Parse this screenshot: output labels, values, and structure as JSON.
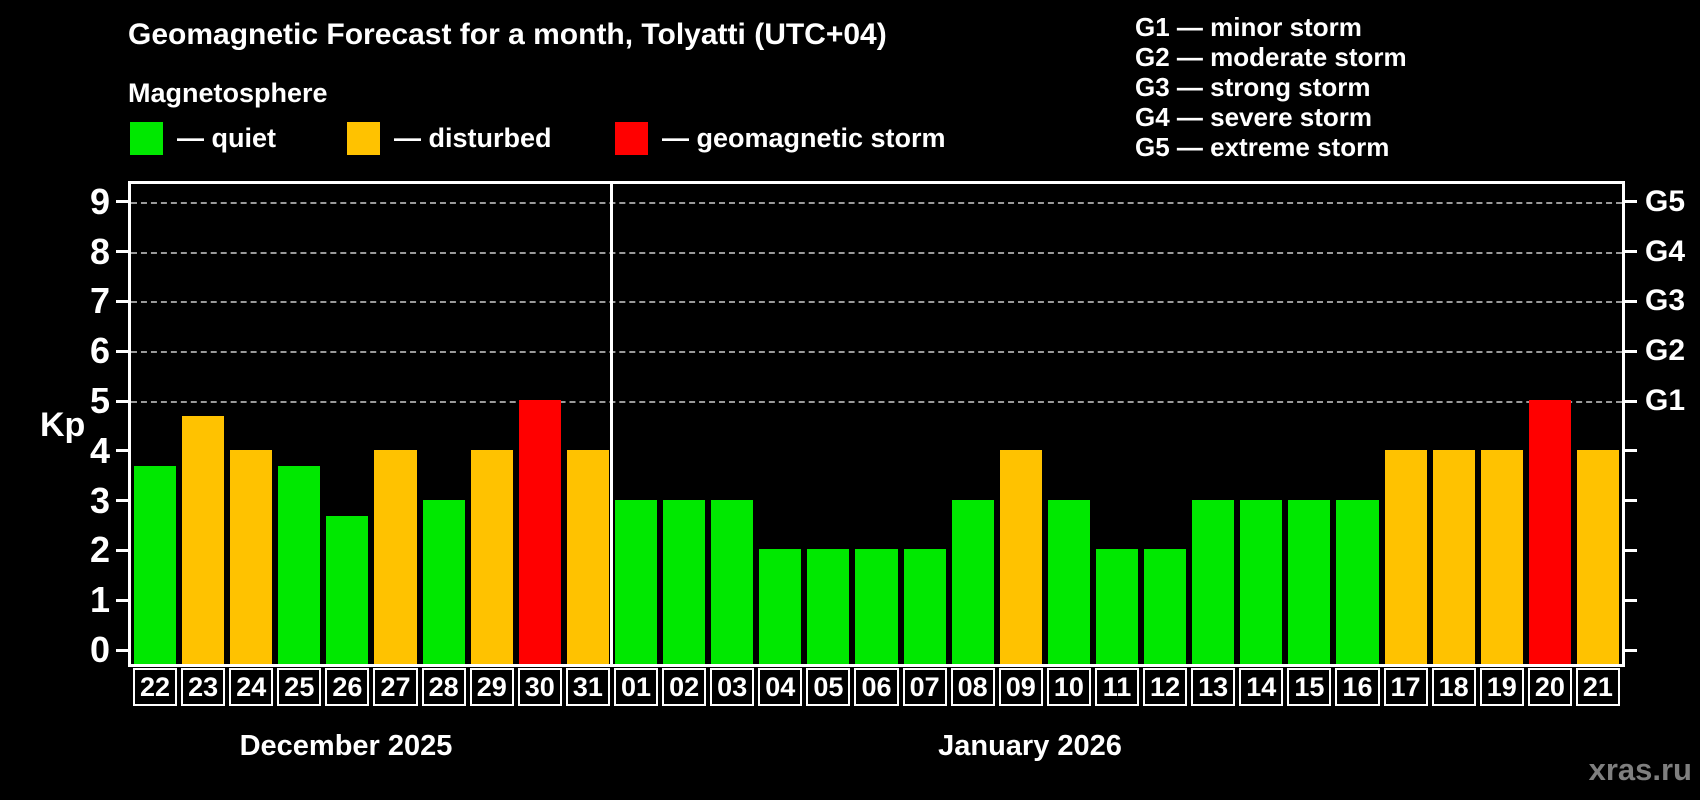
{
  "title": "Geomagnetic Forecast for a month, Tolyatti (UTC+04)",
  "subtitle": "Magnetosphere",
  "legend": {
    "quiet_label": "— quiet",
    "disturbed_label": "— disturbed",
    "storm_label": "— geomagnetic storm"
  },
  "g_legend": [
    "G1 — minor storm",
    "G2 — moderate storm",
    "G3 — strong storm",
    "G4 — severe storm",
    "G5 — extreme storm"
  ],
  "axis": {
    "kp_label": "Kp",
    "y_ticks": [
      0,
      1,
      2,
      3,
      4,
      5,
      6,
      7,
      8,
      9
    ],
    "right_labels": [
      {
        "kp": 9,
        "label": "G5"
      },
      {
        "kp": 8,
        "label": "G4"
      },
      {
        "kp": 7,
        "label": "G3"
      },
      {
        "kp": 6,
        "label": "G2"
      },
      {
        "kp": 5,
        "label": "G1"
      }
    ]
  },
  "colors": {
    "quiet": "#00e800",
    "disturbed": "#ffc200",
    "storm": "#ff0000"
  },
  "watermark": "xras.ru",
  "chart_data": {
    "type": "bar",
    "title": "Geomagnetic Forecast for a month, Tolyatti (UTC+04)",
    "xlabel": "",
    "ylabel": "Kp",
    "ylim": [
      0,
      9.4
    ],
    "grid_kp": [
      5,
      6,
      7,
      8,
      9
    ],
    "legend_position": "top-left and top-right",
    "months": [
      "December 2025",
      "January 2026"
    ],
    "categories": [
      "Dec 22",
      "Dec 23",
      "Dec 24",
      "Dec 25",
      "Dec 26",
      "Dec 27",
      "Dec 28",
      "Dec 29",
      "Dec 30",
      "Dec 31",
      "Jan 01",
      "Jan 02",
      "Jan 03",
      "Jan 04",
      "Jan 05",
      "Jan 06",
      "Jan 07",
      "Jan 08",
      "Jan 09",
      "Jan 10",
      "Jan 11",
      "Jan 12",
      "Jan 13",
      "Jan 14",
      "Jan 15",
      "Jan 16",
      "Jan 17",
      "Jan 18",
      "Jan 19",
      "Jan 20",
      "Jan 21"
    ],
    "day_labels": [
      "22",
      "23",
      "24",
      "25",
      "26",
      "27",
      "28",
      "29",
      "30",
      "31",
      "01",
      "02",
      "03",
      "04",
      "05",
      "06",
      "07",
      "08",
      "09",
      "10",
      "11",
      "12",
      "13",
      "14",
      "15",
      "16",
      "17",
      "18",
      "19",
      "20",
      "21"
    ],
    "values": [
      3.67,
      4.67,
      4,
      3.67,
      2.67,
      4,
      3,
      4,
      5,
      4,
      3,
      3,
      3,
      2,
      2,
      2,
      2,
      3,
      4,
      3,
      2,
      2,
      3,
      3,
      3,
      3,
      4,
      4,
      4,
      5,
      4
    ],
    "statuses": [
      "quiet",
      "disturbed",
      "disturbed",
      "quiet",
      "quiet",
      "disturbed",
      "quiet",
      "disturbed",
      "storm",
      "disturbed",
      "quiet",
      "quiet",
      "quiet",
      "quiet",
      "quiet",
      "quiet",
      "quiet",
      "quiet",
      "disturbed",
      "quiet",
      "quiet",
      "quiet",
      "quiet",
      "quiet",
      "quiet",
      "quiet",
      "disturbed",
      "disturbed",
      "disturbed",
      "storm",
      "disturbed"
    ]
  }
}
